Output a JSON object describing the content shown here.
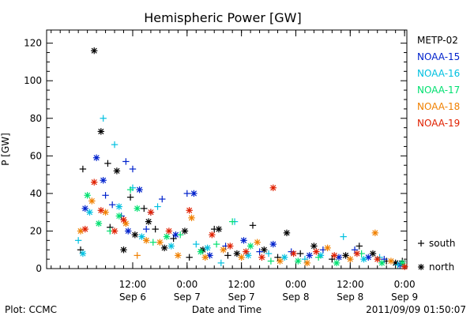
{
  "chart_data": {
    "type": "scatter",
    "title": "Hemispheric Power [GW]",
    "xlabel": "Date and Time",
    "ylabel": "P [GW]",
    "xlim": [
      "2011-09-05T17:00",
      "2011-09-09T00:30"
    ],
    "ylim": [
      0,
      127
    ],
    "yticks": [
      0,
      20,
      40,
      60,
      80,
      100,
      120
    ],
    "xticks": [
      {
        "t": "2011-09-06T12:00",
        "line1": "12:00",
        "line2": "Sep 6"
      },
      {
        "t": "2011-09-07T00:00",
        "line1": "0:00",
        "line2": "Sep 7"
      },
      {
        "t": "2011-09-07T12:00",
        "line1": "12:00",
        "line2": "Sep 7"
      },
      {
        "t": "2011-09-08T00:00",
        "line1": "0:00",
        "line2": "Sep 8"
      },
      {
        "t": "2011-09-08T12:00",
        "line1": "12:00",
        "line2": "Sep 8"
      },
      {
        "t": "2011-09-09T00:00",
        "line1": "0:00",
        "line2": "Sep 9"
      }
    ],
    "grid": false,
    "legend_position": "right",
    "marker_legend": [
      {
        "symbol": "+",
        "label": "south"
      },
      {
        "symbol": "*",
        "label": "north"
      }
    ],
    "series": [
      {
        "name": "METP-02",
        "color": "#000000",
        "points": [
          {
            "t": "2011-09-06T00:30",
            "y": 10,
            "m": "plus"
          },
          {
            "t": "2011-09-06T01:00",
            "y": 53,
            "m": "plus"
          },
          {
            "t": "2011-09-06T03:30",
            "y": 116,
            "m": "star"
          },
          {
            "t": "2011-09-06T05:00",
            "y": 73,
            "m": "star"
          },
          {
            "t": "2011-09-06T06:30",
            "y": 56,
            "m": "plus"
          },
          {
            "t": "2011-09-06T07:00",
            "y": 22,
            "m": "plus"
          },
          {
            "t": "2011-09-06T08:30",
            "y": 52,
            "m": "star"
          },
          {
            "t": "2011-09-06T10:00",
            "y": 10,
            "m": "star"
          },
          {
            "t": "2011-09-06T11:30",
            "y": 38,
            "m": "plus"
          },
          {
            "t": "2011-09-06T12:30",
            "y": 18,
            "m": "star"
          },
          {
            "t": "2011-09-06T14:30",
            "y": 32,
            "m": "plus"
          },
          {
            "t": "2011-09-06T15:30",
            "y": 25,
            "m": "star"
          },
          {
            "t": "2011-09-06T17:00",
            "y": 21,
            "m": "plus"
          },
          {
            "t": "2011-09-06T19:00",
            "y": 11,
            "m": "star"
          },
          {
            "t": "2011-09-06T21:00",
            "y": 16,
            "m": "plus"
          },
          {
            "t": "2011-09-06T23:30",
            "y": 20,
            "m": "star"
          },
          {
            "t": "2011-09-07T00:30",
            "y": 6,
            "m": "plus"
          },
          {
            "t": "2011-09-07T03:30",
            "y": 10,
            "m": "star"
          },
          {
            "t": "2011-09-07T06:00",
            "y": 21,
            "m": "plus"
          },
          {
            "t": "2011-09-07T07:00",
            "y": 21,
            "m": "star"
          },
          {
            "t": "2011-09-07T09:00",
            "y": 7,
            "m": "plus"
          },
          {
            "t": "2011-09-07T11:00",
            "y": 8,
            "m": "star"
          },
          {
            "t": "2011-09-07T14:30",
            "y": 23,
            "m": "plus"
          },
          {
            "t": "2011-09-07T17:00",
            "y": 10,
            "m": "star"
          },
          {
            "t": "2011-09-07T20:00",
            "y": 6,
            "m": "plus"
          },
          {
            "t": "2011-09-07T22:00",
            "y": 19,
            "m": "star"
          },
          {
            "t": "2011-09-08T01:00",
            "y": 8,
            "m": "plus"
          },
          {
            "t": "2011-09-08T04:00",
            "y": 12,
            "m": "star"
          },
          {
            "t": "2011-09-08T08:00",
            "y": 5,
            "m": "plus"
          },
          {
            "t": "2011-09-08T11:00",
            "y": 7,
            "m": "star"
          },
          {
            "t": "2011-09-08T14:00",
            "y": 12,
            "m": "plus"
          },
          {
            "t": "2011-09-08T17:00",
            "y": 8,
            "m": "star"
          },
          {
            "t": "2011-09-08T20:00",
            "y": 4,
            "m": "plus"
          },
          {
            "t": "2011-09-08T22:00",
            "y": 3,
            "m": "star"
          },
          {
            "t": "2011-09-08T23:30",
            "y": 4,
            "m": "plus"
          }
        ]
      },
      {
        "name": "NOAA-15",
        "color": "#0022cc",
        "points": [
          {
            "t": "2011-09-06T01:30",
            "y": 32,
            "m": "star"
          },
          {
            "t": "2011-09-06T04:00",
            "y": 59,
            "m": "star"
          },
          {
            "t": "2011-09-06T05:30",
            "y": 47,
            "m": "star"
          },
          {
            "t": "2011-09-06T06:00",
            "y": 39,
            "m": "plus"
          },
          {
            "t": "2011-09-06T07:30",
            "y": 34,
            "m": "plus"
          },
          {
            "t": "2011-09-06T09:30",
            "y": 28,
            "m": "plus"
          },
          {
            "t": "2011-09-06T10:30",
            "y": 57,
            "m": "plus"
          },
          {
            "t": "2011-09-06T11:00",
            "y": 20,
            "m": "star"
          },
          {
            "t": "2011-09-06T12:00",
            "y": 53,
            "m": "plus"
          },
          {
            "t": "2011-09-06T13:30",
            "y": 42,
            "m": "star"
          },
          {
            "t": "2011-09-06T15:00",
            "y": 21,
            "m": "plus"
          },
          {
            "t": "2011-09-06T16:00",
            "y": 30,
            "m": "plus"
          },
          {
            "t": "2011-09-06T18:30",
            "y": 37,
            "m": "plus"
          },
          {
            "t": "2011-09-06T21:30",
            "y": 18,
            "m": "star"
          },
          {
            "t": "2011-09-07T00:00",
            "y": 40,
            "m": "plus"
          },
          {
            "t": "2011-09-07T01:30",
            "y": 40,
            "m": "star"
          },
          {
            "t": "2011-09-07T05:00",
            "y": 7,
            "m": "star"
          },
          {
            "t": "2011-09-07T08:30",
            "y": 12,
            "m": "plus"
          },
          {
            "t": "2011-09-07T12:30",
            "y": 15,
            "m": "star"
          },
          {
            "t": "2011-09-07T16:00",
            "y": 9,
            "m": "plus"
          },
          {
            "t": "2011-09-07T19:00",
            "y": 13,
            "m": "star"
          },
          {
            "t": "2011-09-07T23:00",
            "y": 9,
            "m": "plus"
          },
          {
            "t": "2011-09-08T03:00",
            "y": 7,
            "m": "star"
          },
          {
            "t": "2011-09-08T06:00",
            "y": 10,
            "m": "plus"
          },
          {
            "t": "2011-09-08T09:30",
            "y": 6,
            "m": "star"
          },
          {
            "t": "2011-09-08T13:00",
            "y": 10,
            "m": "plus"
          },
          {
            "t": "2011-09-08T16:00",
            "y": 6,
            "m": "star"
          },
          {
            "t": "2011-09-08T19:30",
            "y": 5,
            "m": "plus"
          },
          {
            "t": "2011-09-08T23:00",
            "y": 2,
            "m": "star"
          }
        ]
      },
      {
        "name": "NOAA-16",
        "color": "#00c0e0",
        "points": [
          {
            "t": "2011-09-06T00:00",
            "y": 15,
            "m": "plus"
          },
          {
            "t": "2011-09-06T01:00",
            "y": 8,
            "m": "star"
          },
          {
            "t": "2011-09-06T02:30",
            "y": 30,
            "m": "star"
          },
          {
            "t": "2011-09-06T05:30",
            "y": 80,
            "m": "plus"
          },
          {
            "t": "2011-09-06T08:00",
            "y": 66,
            "m": "plus"
          },
          {
            "t": "2011-09-06T09:00",
            "y": 33,
            "m": "star"
          },
          {
            "t": "2011-09-06T12:00",
            "y": 43,
            "m": "plus"
          },
          {
            "t": "2011-09-06T14:00",
            "y": 17,
            "m": "star"
          },
          {
            "t": "2011-09-06T17:30",
            "y": 33,
            "m": "plus"
          },
          {
            "t": "2011-09-06T20:30",
            "y": 12,
            "m": "star"
          },
          {
            "t": "2011-09-07T02:00",
            "y": 13,
            "m": "plus"
          },
          {
            "t": "2011-09-07T04:30",
            "y": 11,
            "m": "star"
          },
          {
            "t": "2011-09-07T07:30",
            "y": 3,
            "m": "plus"
          },
          {
            "t": "2011-09-07T10:30",
            "y": 25,
            "m": "plus"
          },
          {
            "t": "2011-09-07T13:30",
            "y": 7,
            "m": "star"
          },
          {
            "t": "2011-09-07T18:00",
            "y": 8,
            "m": "plus"
          },
          {
            "t": "2011-09-07T21:30",
            "y": 6,
            "m": "star"
          },
          {
            "t": "2011-09-08T02:00",
            "y": 5,
            "m": "plus"
          },
          {
            "t": "2011-09-08T05:30",
            "y": 7,
            "m": "star"
          },
          {
            "t": "2011-09-08T10:30",
            "y": 17,
            "m": "plus"
          },
          {
            "t": "2011-09-08T15:00",
            "y": 5,
            "m": "star"
          },
          {
            "t": "2011-09-08T18:30",
            "y": 6,
            "m": "plus"
          },
          {
            "t": "2011-09-08T22:30",
            "y": 2,
            "m": "plus"
          }
        ]
      },
      {
        "name": "NOAA-17",
        "color": "#00e070",
        "points": [
          {
            "t": "2011-09-06T02:00",
            "y": 39,
            "m": "star"
          },
          {
            "t": "2011-09-06T04:30",
            "y": 24,
            "m": "star"
          },
          {
            "t": "2011-09-06T07:00",
            "y": 20,
            "m": "plus"
          },
          {
            "t": "2011-09-06T09:00",
            "y": 28,
            "m": "star"
          },
          {
            "t": "2011-09-06T11:30",
            "y": 42,
            "m": "plus"
          },
          {
            "t": "2011-09-06T13:00",
            "y": 32,
            "m": "star"
          },
          {
            "t": "2011-09-06T16:30",
            "y": 14,
            "m": "plus"
          },
          {
            "t": "2011-09-06T19:30",
            "y": 17,
            "m": "star"
          },
          {
            "t": "2011-09-06T22:30",
            "y": 18,
            "m": "plus"
          },
          {
            "t": "2011-09-07T03:00",
            "y": 9,
            "m": "star"
          },
          {
            "t": "2011-09-07T06:30",
            "y": 13,
            "m": "plus"
          },
          {
            "t": "2011-09-07T10:00",
            "y": 25,
            "m": "plus"
          },
          {
            "t": "2011-09-07T14:00",
            "y": 12,
            "m": "star"
          },
          {
            "t": "2011-09-07T18:30",
            "y": 4,
            "m": "plus"
          },
          {
            "t": "2011-09-08T00:30",
            "y": 4,
            "m": "star"
          },
          {
            "t": "2011-09-08T05:00",
            "y": 6,
            "m": "plus"
          },
          {
            "t": "2011-09-08T09:00",
            "y": 3,
            "m": "star"
          },
          {
            "t": "2011-09-08T14:30",
            "y": 8,
            "m": "plus"
          },
          {
            "t": "2011-09-08T19:00",
            "y": 3,
            "m": "star"
          },
          {
            "t": "2011-09-08T23:30",
            "y": 3,
            "m": "star"
          }
        ]
      },
      {
        "name": "NOAA-18",
        "color": "#f08000",
        "points": [
          {
            "t": "2011-09-06T00:30",
            "y": 20,
            "m": "star"
          },
          {
            "t": "2011-09-06T03:00",
            "y": 36,
            "m": "star"
          },
          {
            "t": "2011-09-06T06:00",
            "y": 30,
            "m": "star"
          },
          {
            "t": "2011-09-06T10:30",
            "y": 24,
            "m": "star"
          },
          {
            "t": "2011-09-06T13:00",
            "y": 7,
            "m": "plus"
          },
          {
            "t": "2011-09-06T15:00",
            "y": 15,
            "m": "star"
          },
          {
            "t": "2011-09-06T18:00",
            "y": 14,
            "m": "star"
          },
          {
            "t": "2011-09-06T22:00",
            "y": 7,
            "m": "star"
          },
          {
            "t": "2011-09-07T01:00",
            "y": 27,
            "m": "star"
          },
          {
            "t": "2011-09-07T04:00",
            "y": 6,
            "m": "star"
          },
          {
            "t": "2011-09-07T08:00",
            "y": 10,
            "m": "star"
          },
          {
            "t": "2011-09-07T12:00",
            "y": 6,
            "m": "star"
          },
          {
            "t": "2011-09-07T15:30",
            "y": 14,
            "m": "star"
          },
          {
            "t": "2011-09-07T20:30",
            "y": 4,
            "m": "star"
          },
          {
            "t": "2011-09-08T02:30",
            "y": 3,
            "m": "star"
          },
          {
            "t": "2011-09-08T07:00",
            "y": 11,
            "m": "star"
          },
          {
            "t": "2011-09-08T12:00",
            "y": 5,
            "m": "star"
          },
          {
            "t": "2011-09-08T17:30",
            "y": 19,
            "m": "star"
          },
          {
            "t": "2011-09-08T21:00",
            "y": 4,
            "m": "star"
          }
        ]
      },
      {
        "name": "NOAA-19",
        "color": "#e02000",
        "points": [
          {
            "t": "2011-09-06T01:30",
            "y": 21,
            "m": "star"
          },
          {
            "t": "2011-09-06T03:30",
            "y": 46,
            "m": "star"
          },
          {
            "t": "2011-09-06T05:00",
            "y": 31,
            "m": "star"
          },
          {
            "t": "2011-09-06T08:00",
            "y": 20,
            "m": "star"
          },
          {
            "t": "2011-09-06T10:00",
            "y": 26,
            "m": "star"
          },
          {
            "t": "2011-09-06T16:00",
            "y": 30,
            "m": "star"
          },
          {
            "t": "2011-09-06T20:00",
            "y": 20,
            "m": "star"
          },
          {
            "t": "2011-09-07T00:30",
            "y": 31,
            "m": "star"
          },
          {
            "t": "2011-09-07T05:30",
            "y": 18,
            "m": "star"
          },
          {
            "t": "2011-09-07T09:30",
            "y": 12,
            "m": "star"
          },
          {
            "t": "2011-09-07T13:00",
            "y": 9,
            "m": "star"
          },
          {
            "t": "2011-09-07T16:30",
            "y": 6,
            "m": "star"
          },
          {
            "t": "2011-09-07T19:00",
            "y": 43,
            "m": "star"
          },
          {
            "t": "2011-09-07T23:30",
            "y": 8,
            "m": "star"
          },
          {
            "t": "2011-09-08T04:30",
            "y": 9,
            "m": "star"
          },
          {
            "t": "2011-09-08T08:30",
            "y": 7,
            "m": "star"
          },
          {
            "t": "2011-09-08T13:30",
            "y": 8,
            "m": "star"
          },
          {
            "t": "2011-09-08T18:00",
            "y": 5,
            "m": "star"
          },
          {
            "t": "2011-09-09T00:00",
            "y": 1,
            "m": "star"
          }
        ]
      }
    ]
  },
  "footer": {
    "left": "Plot: CCMC",
    "center": "Date and Time",
    "right": "2011/09/09 01:50:07"
  }
}
